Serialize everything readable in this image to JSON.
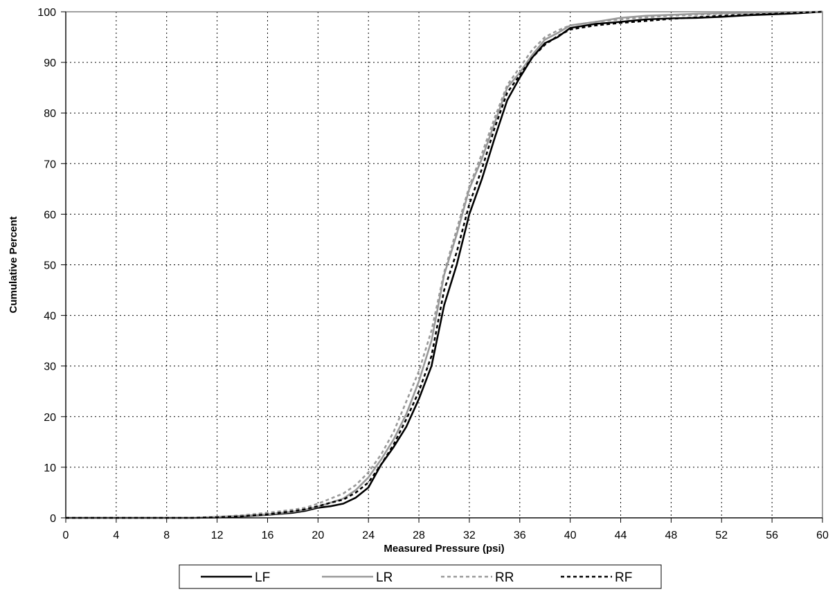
{
  "chart_data": {
    "type": "line",
    "title": "",
    "xlabel": "Measured Pressure (psi)",
    "ylabel": "Cumulative Percent",
    "xlim": [
      0,
      60
    ],
    "ylim": [
      0,
      100
    ],
    "xticks": [
      0,
      4,
      8,
      12,
      16,
      20,
      24,
      28,
      32,
      36,
      40,
      44,
      48,
      52,
      56,
      60
    ],
    "yticks": [
      0,
      10,
      20,
      30,
      40,
      50,
      60,
      70,
      80,
      90,
      100
    ],
    "grid": true,
    "legend_position": "bottom",
    "series": [
      {
        "name": "LF",
        "color": "#000000",
        "dash": "solid",
        "x": [
          0,
          10,
          12,
          14,
          16,
          18,
          19,
          20,
          21,
          22,
          23,
          24,
          25,
          26,
          27,
          28,
          29,
          30,
          31,
          32,
          33,
          34,
          35,
          36,
          37,
          38,
          39,
          40,
          42,
          44,
          46,
          48,
          50,
          52,
          54,
          56,
          58,
          60
        ],
        "y": [
          0,
          0,
          0.1,
          0.3,
          0.6,
          1.0,
          1.4,
          2.0,
          2.3,
          2.8,
          4.0,
          6.0,
          10.5,
          14.0,
          18.0,
          23.5,
          30.0,
          42.0,
          50.0,
          60.0,
          67.0,
          75.0,
          82.5,
          87.0,
          91.0,
          93.8,
          95.0,
          96.8,
          97.6,
          98.0,
          98.5,
          98.7,
          98.8,
          99.0,
          99.3,
          99.5,
          99.7,
          100
        ]
      },
      {
        "name": "LR",
        "color": "#999999",
        "dash": "solid",
        "x": [
          0,
          10,
          12,
          14,
          16,
          18,
          19,
          20,
          21,
          22,
          23,
          24,
          25,
          26,
          27,
          28,
          29,
          30,
          31,
          32,
          33,
          34,
          35,
          36,
          37,
          38,
          39,
          40,
          42,
          44,
          46,
          48,
          50,
          52,
          54,
          56,
          58,
          60
        ],
        "y": [
          0,
          0,
          0.2,
          0.4,
          0.7,
          1.2,
          1.6,
          2.2,
          3.0,
          3.8,
          5.5,
          8.0,
          11.5,
          15.5,
          20.5,
          27.0,
          35.0,
          48.0,
          56.0,
          65.0,
          71.0,
          78.0,
          85.0,
          88.0,
          91.5,
          94.5,
          95.8,
          97.3,
          98.0,
          98.8,
          99.2,
          99.4,
          99.6,
          99.7,
          99.8,
          99.9,
          99.95,
          100
        ]
      },
      {
        "name": "RR",
        "color": "#999999",
        "dash": "short-dash",
        "x": [
          0,
          10,
          12,
          14,
          16,
          18,
          19,
          20,
          21,
          22,
          23,
          24,
          25,
          26,
          27,
          28,
          29,
          30,
          31,
          32,
          33,
          34,
          35,
          36,
          37,
          38,
          39,
          40,
          42,
          44,
          46,
          48,
          50,
          52,
          54,
          56,
          58,
          60
        ],
        "y": [
          0,
          0,
          0.2,
          0.5,
          1.0,
          1.6,
          2.0,
          2.8,
          3.8,
          4.8,
          6.5,
          9.0,
          12.5,
          17.0,
          23.0,
          29.0,
          37.0,
          48.5,
          57.0,
          65.5,
          72.0,
          79.0,
          85.5,
          89.0,
          92.5,
          95.0,
          96.3,
          97.3,
          98.0,
          98.5,
          98.9,
          99.2,
          99.4,
          99.6,
          99.7,
          99.8,
          99.9,
          100
        ]
      },
      {
        "name": "RF",
        "color": "#000000",
        "dash": "short-dash",
        "x": [
          0,
          10,
          12,
          14,
          16,
          18,
          19,
          20,
          21,
          22,
          23,
          24,
          25,
          26,
          27,
          28,
          29,
          30,
          31,
          32,
          33,
          34,
          35,
          36,
          37,
          38,
          39,
          40,
          42,
          44,
          46,
          48,
          50,
          52,
          54,
          56,
          58,
          60
        ],
        "y": [
          0,
          0,
          0.1,
          0.3,
          0.7,
          1.3,
          1.7,
          2.3,
          3.0,
          3.6,
          5.0,
          7.0,
          10.5,
          14.5,
          19.5,
          25.0,
          32.0,
          45.0,
          52.5,
          62.0,
          69.0,
          77.0,
          84.0,
          87.5,
          91.0,
          93.5,
          95.2,
          96.5,
          97.3,
          97.8,
          98.2,
          98.6,
          98.9,
          99.2,
          99.4,
          99.6,
          99.8,
          100
        ]
      }
    ]
  }
}
